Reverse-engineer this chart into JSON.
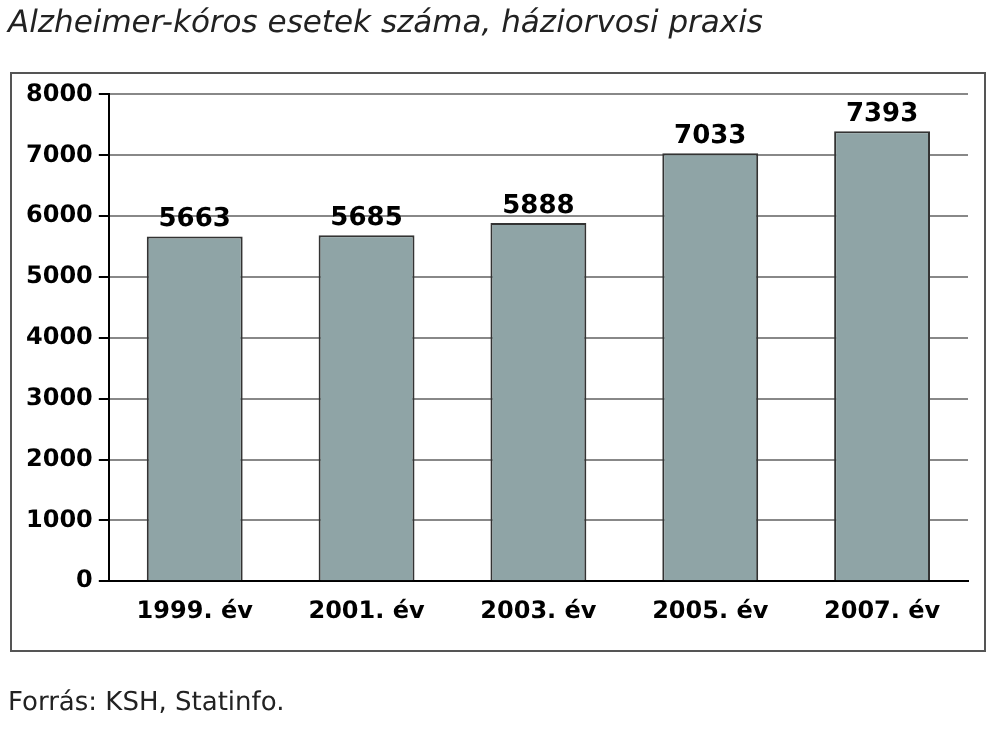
{
  "chart_data": {
    "type": "bar",
    "title": "Alzheimer-kóros esetek száma, háziorvosi praxis",
    "categories": [
      "1999. év",
      "2001. év",
      "2003. év",
      "2005. év",
      "2007. év"
    ],
    "values": [
      5663,
      5685,
      5888,
      7033,
      7393
    ],
    "color": "#8fa4a6",
    "ylim": [
      0,
      8000
    ],
    "yticks": [
      0,
      1000,
      2000,
      3000,
      4000,
      5000,
      6000,
      7000,
      8000
    ],
    "grid": "y",
    "data_labels": true,
    "annotations": [
      "Forrás: KSH, Statinfo."
    ]
  }
}
